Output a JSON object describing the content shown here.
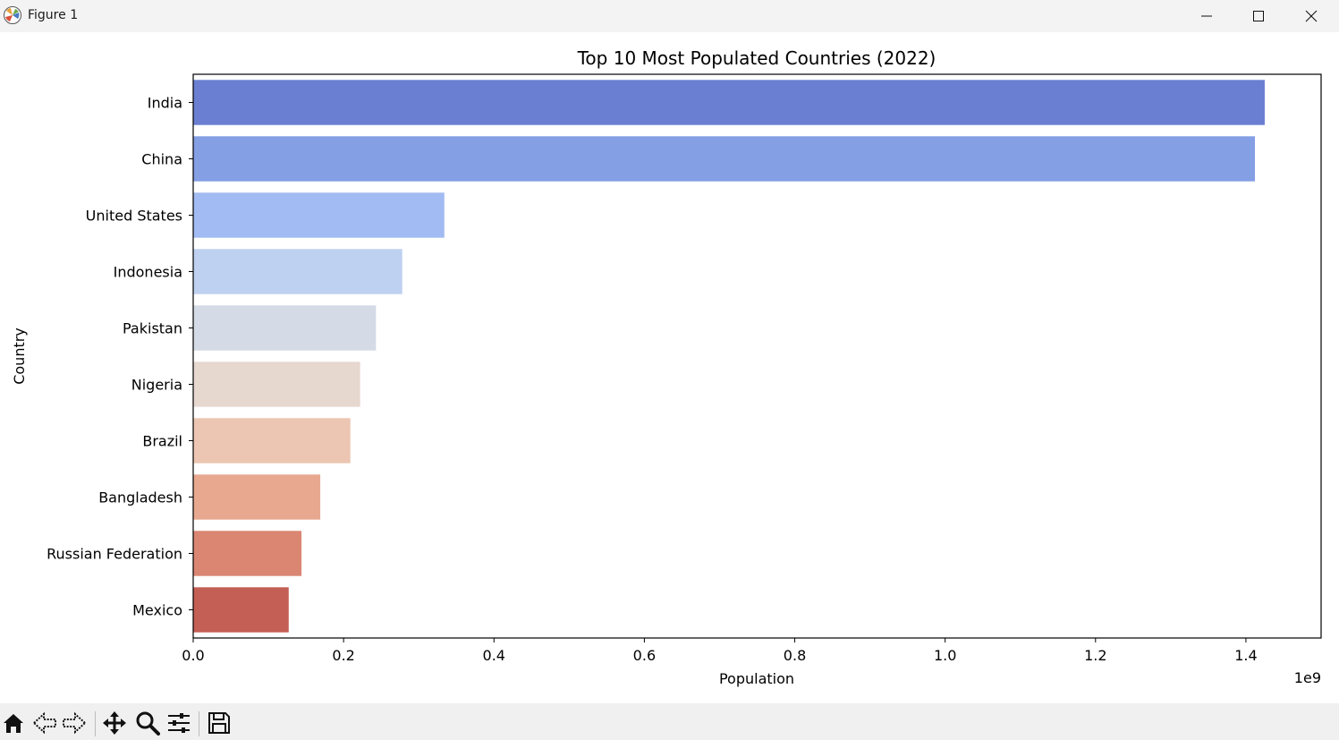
{
  "window": {
    "title": "Figure 1",
    "controls": {
      "minimize": "minimize-icon",
      "maximize": "maximize-icon",
      "close": "close-icon"
    }
  },
  "toolbar": {
    "tools": [
      "home-icon",
      "back-arrow-icon",
      "forward-arrow-icon",
      "pan-move-icon",
      "zoom-magnifier-icon",
      "configure-subplots-icon",
      "save-floppy-icon"
    ]
  },
  "chart_data": {
    "type": "bar",
    "orientation": "horizontal",
    "title": "Top 10 Most Populated Countries (2022)",
    "xlabel": "Population",
    "ylabel": "Country",
    "x_offset_label": "1e9",
    "xlim": [
      0,
      1.5
    ],
    "x_ticks": [
      0.0,
      0.2,
      0.4,
      0.6,
      0.8,
      1.0,
      1.2,
      1.4
    ],
    "x_tick_labels": [
      "0.0",
      "0.2",
      "0.4",
      "0.6",
      "0.8",
      "1.0",
      "1.2",
      "1.4"
    ],
    "categories": [
      "India",
      "China",
      "United States",
      "Indonesia",
      "Pakistan",
      "Nigeria",
      "Brazil",
      "Bangladesh",
      "Russian Federation",
      "Mexico"
    ],
    "values": [
      1.425,
      1.412,
      0.334,
      0.278,
      0.243,
      0.222,
      0.209,
      0.169,
      0.144,
      0.127
    ],
    "colors": [
      "#6a7fd1",
      "#859fe5",
      "#a2bbf2",
      "#bfd1f0",
      "#d4dae6",
      "#e6d8cf",
      "#ecc6b2",
      "#e7a88f",
      "#da8672",
      "#c35f55"
    ],
    "grid": false,
    "legend": "none"
  }
}
